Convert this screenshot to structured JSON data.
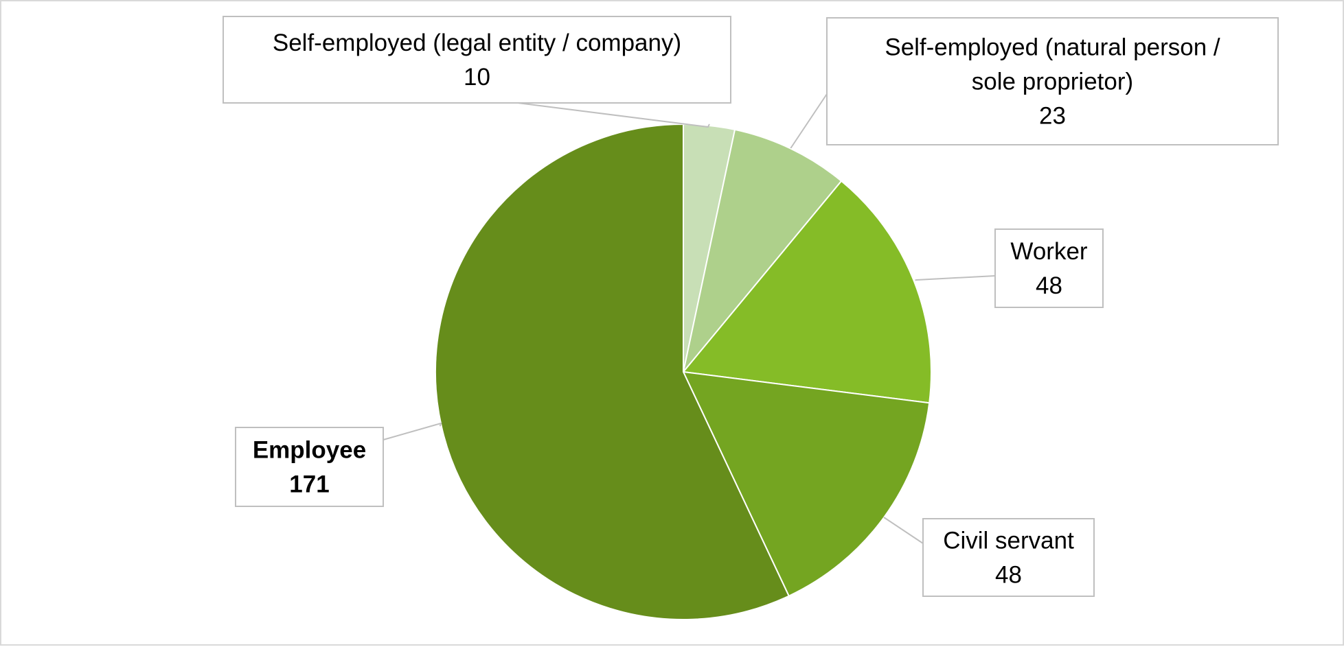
{
  "chart_data": {
    "type": "pie",
    "title": "",
    "start_angle_deg": 0,
    "direction": "clockwise",
    "slices": [
      {
        "label_lines": [
          "Self-employed (legal entity / company)"
        ],
        "value": 10,
        "color": "#c8dfb6"
      },
      {
        "label_lines": [
          "Self-employed (natural person /",
          "sole proprietor)"
        ],
        "value": 23,
        "color": "#aed08b"
      },
      {
        "label_lines": [
          "Worker"
        ],
        "value": 48,
        "color": "#85bc27"
      },
      {
        "label_lines": [
          "Civil servant"
        ],
        "value": 48,
        "color": "#74a521"
      },
      {
        "label_lines": [
          "Employee"
        ],
        "value": 171,
        "color": "#668d1b",
        "bold": true
      }
    ],
    "legend": "none",
    "data_labels": "callouts"
  }
}
